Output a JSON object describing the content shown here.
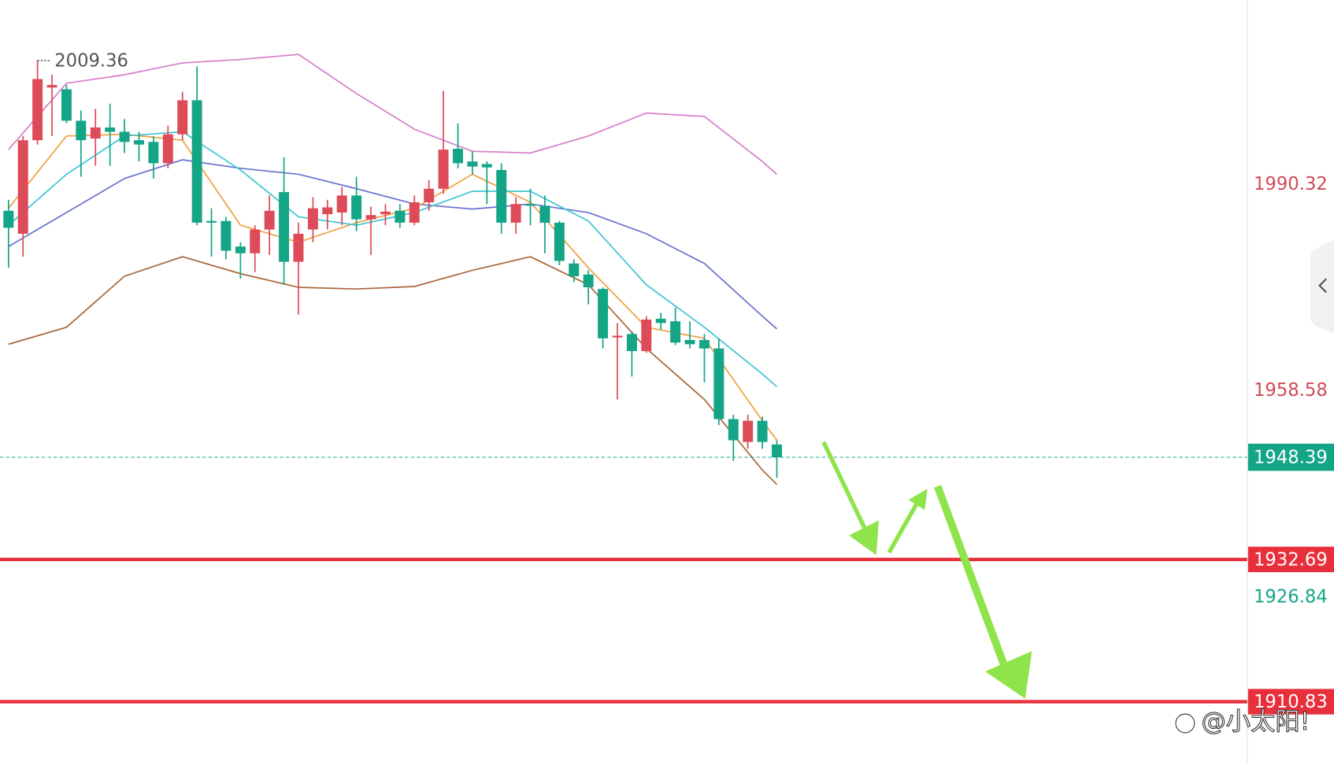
{
  "chart_data": {
    "type": "candlestick",
    "categories": [
      null,
      null,
      null,
      null,
      null,
      null,
      null,
      null,
      null,
      null,
      null,
      null,
      null,
      null,
      null,
      null,
      null,
      null,
      null,
      null,
      null,
      null,
      null,
      null,
      null,
      null,
      null,
      null,
      null,
      null,
      null,
      null,
      null,
      null,
      null,
      null,
      null,
      null,
      null,
      null,
      null,
      null,
      null,
      null,
      null,
      null,
      null,
      null,
      null,
      null,
      null,
      null,
      null,
      null
    ],
    "open": [
      1986.27,
      1982.74,
      1997.11,
      2005.21,
      2004.94,
      2000.11,
      1997.37,
      1999.07,
      1998.41,
      1997.11,
      1996.85,
      1993.58,
      1998.02,
      2003.25,
      1984.7,
      1984.7,
      1980.78,
      1979.74,
      1983.39,
      1989.14,
      1978.43,
      1983.39,
      1985.74,
      1986.0,
      1988.62,
      1984.96,
      1985.74,
      1986.27,
      1984.44,
      1987.57,
      1989.66,
      1995.8,
      1993.84,
      1993.45,
      1992.54,
      1984.44,
      1987.31,
      1987.05,
      1984.44,
      1978.17,
      1976.47,
      1974.25,
      1966.8,
      1967.33,
      1964.71,
      1969.68,
      1969.29,
      1966.41,
      1966.41,
      1965.11,
      1954.26,
      1950.74,
      1954.0,
      1950.35
    ],
    "high": [
      1987.96,
      1997.76,
      2009.36,
      2007.17,
      2005.6,
      2001.68,
      2001.94,
      2002.72,
      2000.37,
      1998.41,
      1997.76,
      1999.33,
      2004.55,
      2008.47,
      1986.66,
      1985.35,
      1981.43,
      1984.05,
      1988.62,
      1994.5,
      1984.44,
      1988.36,
      1987.96,
      1989.92,
      1991.49,
      1986.92,
      1987.31,
      1987.31,
      1988.62,
      1990.97,
      2004.68,
      1999.72,
      1995.41,
      1993.84,
      1993.58,
      1988.36,
      1989.66,
      1988.62,
      1984.7,
      1978.82,
      1977.12,
      1974.51,
      1969.02,
      1967.72,
      1970.07,
      1970.59,
      1971.38,
      1969.29,
      1967.33,
      1966.67,
      1954.92,
      1954.92,
      1954.66,
      1951.0
    ],
    "low": [
      1977.51,
      1979.21,
      1996.45,
      1997.76,
      1999.72,
      1991.49,
      1993.19,
      1993.19,
      1995.15,
      1993.84,
      1991.23,
      1992.8,
      1997.11,
      1984.05,
      1979.21,
      1978.82,
      1975.82,
      1976.86,
      1979.47,
      1974.9,
      1970.33,
      1981.43,
      1983.39,
      1984.05,
      1983.13,
      1979.47,
      1984.05,
      1983.65,
      1984.05,
      1986.27,
      1988.88,
      1992.8,
      1991.88,
      1987.31,
      1982.74,
      1982.74,
      1984.05,
      1979.74,
      1977.91,
      1975.29,
      1971.9,
      1965.11,
      1957.27,
      1960.8,
      1964.45,
      1967.98,
      1965.63,
      1965.11,
      1959.88,
      1953.35,
      1947.86,
      1949.69,
      1949.69,
      1945.25
    ],
    "close": [
      1983.65,
      1997.11,
      2006.51,
      2005.6,
      2000.11,
      1997.11,
      1999.07,
      1998.41,
      1996.85,
      1996.45,
      1993.58,
      1998.02,
      2003.25,
      1984.44,
      1984.44,
      1980.13,
      1979.74,
      1983.39,
      1986.27,
      1978.43,
      1982.74,
      1986.66,
      1986.79,
      1988.62,
      1984.96,
      1985.61,
      1986.14,
      1984.44,
      1987.57,
      1989.66,
      1995.67,
      1993.58,
      1993.06,
      1992.93,
      1984.44,
      1987.31,
      1987.05,
      1984.44,
      1978.56,
      1976.21,
      1974.51,
      1966.67,
      1967.07,
      1964.71,
      1969.55,
      1969.02,
      1966.02,
      1965.76,
      1965.11,
      1954.26,
      1951.0,
      1954.0,
      1950.74,
      1948.39
    ],
    "up_color": "#dd4b59",
    "down_color": "#14a587",
    "indicators": [
      {
        "color": "#d77fc9",
        "x": [
          0,
          4,
          8,
          12,
          16,
          20,
          24,
          28,
          32,
          36,
          40,
          44,
          48,
          52,
          53
        ],
        "values": [
          1995.67,
          2005.86,
          2007.17,
          2008.99,
          2009.52,
          2010.3,
          2004.29,
          1998.81,
          1995.41,
          1995.15,
          1997.76,
          2001.29,
          2000.76,
          1993.84,
          1991.88
        ]
      },
      {
        "color": "#6b72cf",
        "x": [
          0,
          4,
          8,
          12,
          16,
          20,
          24,
          28,
          32,
          36,
          40,
          44,
          48,
          52,
          53
        ],
        "values": [
          1980.78,
          1986.0,
          1991.23,
          1994.1,
          1992.8,
          1991.88,
          1989.66,
          1987.31,
          1986.53,
          1987.31,
          1986.0,
          1982.74,
          1978.17,
          1970.07,
          1968.11
        ]
      },
      {
        "color": "#a8673a",
        "x": [
          0,
          4,
          8,
          12,
          16,
          20,
          24,
          28,
          32,
          36,
          40,
          44,
          48,
          52,
          53
        ],
        "values": [
          1965.76,
          1968.37,
          1976.21,
          1979.21,
          1976.6,
          1974.51,
          1974.25,
          1974.64,
          1977.12,
          1979.21,
          1974.9,
          1965.11,
          1957.27,
          1946.43,
          1944.21
        ]
      },
      {
        "color": "#f0a040",
        "x": [
          0,
          4,
          8,
          12,
          16,
          20,
          24,
          28,
          32,
          36,
          40,
          44,
          48,
          52,
          53
        ],
        "values": [
          1986.66,
          1997.76,
          1998.02,
          1997.11,
          1984.05,
          1981.43,
          1984.44,
          1986.66,
          1991.88,
          1987.57,
          1977.51,
          1968.37,
          1966.67,
          1954.0,
          1951.0
        ]
      },
      {
        "color": "#3fc6d2",
        "x": [
          0,
          4,
          8,
          12,
          16,
          20,
          24,
          28,
          32,
          36,
          40,
          44,
          48,
          52,
          53
        ],
        "values": [
          1984.05,
          1991.88,
          1997.76,
          1998.41,
          1992.54,
          1985.35,
          1984.05,
          1986.0,
          1989.27,
          1989.27,
          1984.7,
          1974.9,
          1968.37,
          1961.19,
          1959.23
        ]
      }
    ],
    "ylim": [
      1901.1,
      2018.66
    ],
    "yticks": [
      1990.32,
      1958.58,
      1926.84
    ],
    "ytick_colors": [
      "#cf4a57",
      "#cf4a57",
      "#14a587"
    ],
    "last_price": {
      "value": 1948.39,
      "color": "#14a587"
    },
    "levels": [
      {
        "value": 1932.69,
        "color": "#e8303c"
      },
      {
        "value": 1910.83,
        "color": "#e8303c"
      }
    ],
    "max_label": 2009.36,
    "watermark": "@小太阳!"
  }
}
